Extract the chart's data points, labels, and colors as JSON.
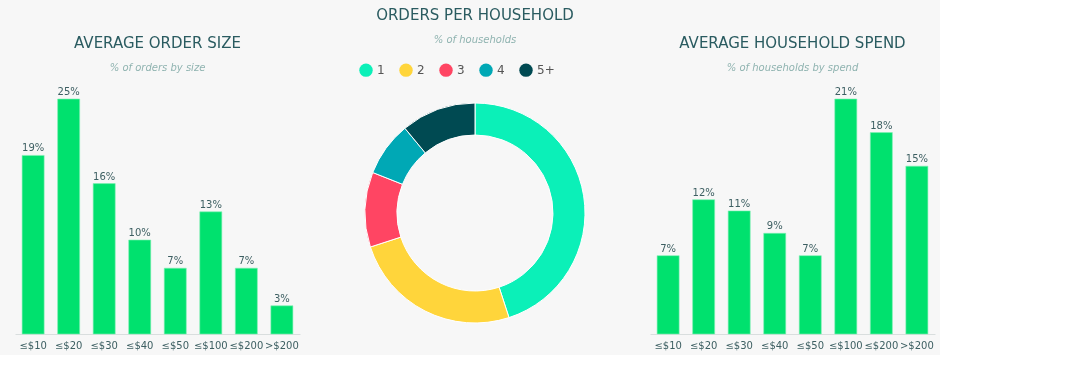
{
  "chart_data": [
    {
      "type": "bar",
      "title": "AVERAGE ORDER SIZE",
      "subtitle": "% of orders by size",
      "categories": [
        "≤$10",
        "≤$20",
        "≤$30",
        "≤$40",
        "≤$50",
        "≤$100",
        "≤$200",
        ">$200"
      ],
      "values": [
        19,
        25,
        16,
        10,
        7,
        13,
        7,
        3
      ],
      "value_labels": [
        "19%",
        "25%",
        "16%",
        "10%",
        "7%",
        "13%",
        "7%",
        "3%"
      ],
      "color": "#00e16e",
      "grid": false,
      "tick_labels": "x"
    },
    {
      "type": "donut",
      "title": "ORDERS PER HOUSEHOLD",
      "subtitle": "% of households",
      "categories": [
        "1",
        "2",
        "3",
        "4",
        "5+"
      ],
      "values": [
        45,
        25,
        11,
        8,
        11
      ],
      "colors": [
        "#0bf0b8",
        "#ffd53b",
        "#ff4563",
        "#00a8b5",
        "#004a52"
      ],
      "legend": "top"
    },
    {
      "type": "bar",
      "title": "AVERAGE HOUSEHOLD SPEND",
      "subtitle": "% of households by spend",
      "categories": [
        "≤$10",
        "≤$20",
        "≤$30",
        "≤$40",
        "≤$50",
        "≤$100",
        "≤$200",
        ">$200"
      ],
      "values": [
        7,
        12,
        11,
        9,
        7,
        21,
        18,
        15
      ],
      "value_labels": [
        "7%",
        "12%",
        "11%",
        "9%",
        "7%",
        "21%",
        "18%",
        "15%"
      ],
      "color": "#00e16e",
      "grid": false,
      "tick_labels": "x"
    }
  ]
}
